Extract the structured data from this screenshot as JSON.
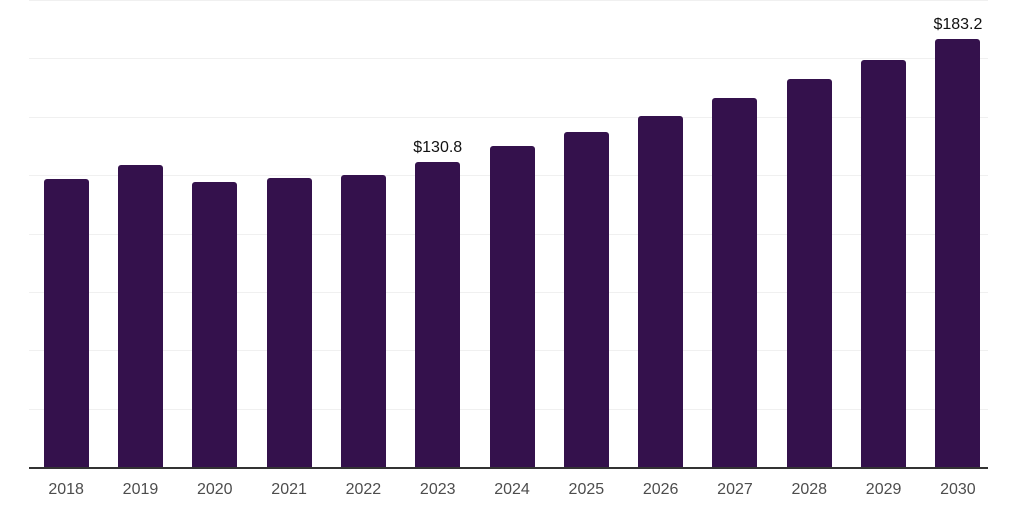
{
  "chart_data": {
    "type": "bar",
    "title": "",
    "xlabel": "",
    "ylabel": "",
    "categories": [
      "2018",
      "2019",
      "2020",
      "2021",
      "2022",
      "2023",
      "2024",
      "2025",
      "2026",
      "2027",
      "2028",
      "2029",
      "2030"
    ],
    "values": [
      123.4,
      129.4,
      122.2,
      123.7,
      125.1,
      130.8,
      137.3,
      143.4,
      150.3,
      158.2,
      166.0,
      174.5,
      183.2
    ],
    "point_labels": [
      null,
      null,
      null,
      null,
      null,
      "$130.8",
      null,
      null,
      null,
      null,
      null,
      null,
      "$183.2"
    ],
    "ylim": [
      0,
      200
    ],
    "gridline_interval": 25,
    "grid": "horizontal",
    "legend": "none",
    "y_axis_labels_visible": false,
    "colors": {
      "bar": "#34114C",
      "gridline": "#F0F0F0",
      "axis_line": "#333333",
      "tick_label": "#4D4D4D",
      "point_label": "#111111",
      "background": "#FFFFFF"
    }
  }
}
